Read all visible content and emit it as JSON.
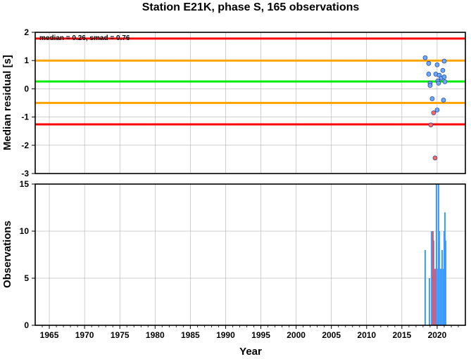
{
  "title": "Station E21K, phase S, 165 observations",
  "chart_data": [
    {
      "type": "scatter",
      "ylabel": "Median residual [s]",
      "annotation": "median = 0.26, smad = 0.76",
      "xlim": [
        1963,
        2024
      ],
      "ylim": [
        -3,
        2
      ],
      "yticks": [
        -3,
        -2,
        -1,
        0,
        1,
        2
      ],
      "grid": true,
      "reference_lines": [
        {
          "value": 1.78,
          "color": "#ff0000"
        },
        {
          "value": 1.0,
          "color": "#ffa500"
        },
        {
          "value": 0.26,
          "color": "#00ee00"
        },
        {
          "value": -0.5,
          "color": "#ffa500"
        },
        {
          "value": -1.26,
          "color": "#ff0000"
        }
      ],
      "series": [
        {
          "color": "#6fa8ff",
          "points": [
            [
              2018.3,
              1.1
            ],
            [
              2018.8,
              0.9
            ],
            [
              2018.8,
              0.52
            ],
            [
              2019.0,
              0.2
            ],
            [
              2019.0,
              0.12
            ],
            [
              2019.3,
              -0.35
            ],
            [
              2019.8,
              0.52
            ],
            [
              2020.0,
              0.85
            ],
            [
              2020.1,
              0.28
            ],
            [
              2020.2,
              0.2
            ],
            [
              2020.3,
              0.48
            ],
            [
              2020.6,
              0.38
            ],
            [
              2020.8,
              0.65
            ],
            [
              2020.9,
              -0.4
            ],
            [
              2021.0,
              0.98
            ],
            [
              2021.0,
              0.42
            ],
            [
              2021.1,
              0.25
            ],
            [
              2020.0,
              -0.75
            ]
          ]
        },
        {
          "color": "#ff6666",
          "points": [
            [
              2019.5,
              -0.85
            ],
            [
              2019.1,
              -1.28
            ],
            [
              2019.7,
              -2.45
            ]
          ]
        }
      ]
    },
    {
      "type": "bar",
      "xlabel": "Year",
      "ylabel": "Observations",
      "xlim": [
        1963,
        2024
      ],
      "ylim": [
        0,
        15
      ],
      "xticks": [
        1965,
        1970,
        1975,
        1980,
        1985,
        1990,
        1995,
        2000,
        2005,
        2010,
        2015,
        2020
      ],
      "yticks": [
        0,
        5,
        10,
        15
      ],
      "grid": true,
      "series": [
        {
          "color": "#3d9bff",
          "bars": [
            [
              2018.3,
              8
            ],
            [
              2018.9,
              5
            ],
            [
              2019.2,
              10
            ],
            [
              2019.5,
              9
            ],
            [
              2019.9,
              15
            ],
            [
              2020.0,
              6
            ],
            [
              2020.2,
              15
            ],
            [
              2020.3,
              10
            ],
            [
              2020.5,
              6
            ],
            [
              2020.7,
              8
            ],
            [
              2020.9,
              6
            ],
            [
              2021.0,
              10
            ],
            [
              2021.1,
              12
            ],
            [
              2021.2,
              9
            ]
          ]
        },
        {
          "color": "#ff4444",
          "bars": [
            [
              2019.4,
              10
            ],
            [
              2019.7,
              6
            ]
          ]
        }
      ]
    }
  ]
}
